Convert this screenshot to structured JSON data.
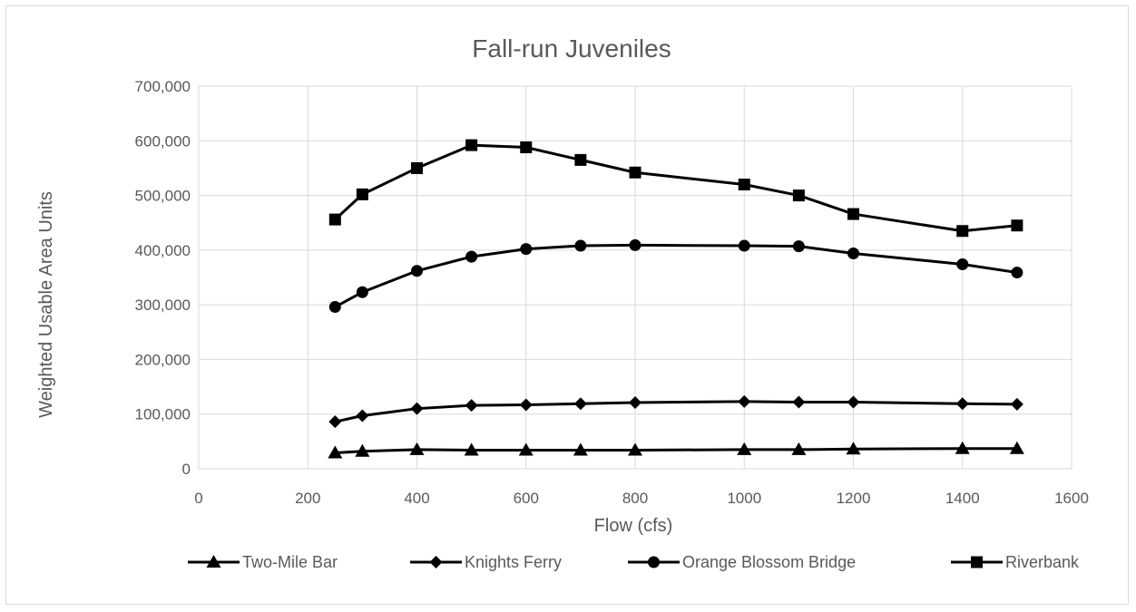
{
  "chart_data": {
    "type": "line",
    "title": "Fall-run Juveniles",
    "xlabel": "Flow (cfs)",
    "ylabel": "Weighted Usable Area Units",
    "xlim": [
      0,
      1600
    ],
    "ylim": [
      0,
      700000
    ],
    "x_ticks": [
      0,
      200,
      400,
      600,
      800,
      1000,
      1200,
      1400,
      1600
    ],
    "x_tick_labels": [
      "0",
      "200",
      "400",
      "600",
      "800",
      "1000",
      "1200",
      "1400",
      "1600"
    ],
    "y_ticks": [
      0,
      100000,
      200000,
      300000,
      400000,
      500000,
      600000,
      700000
    ],
    "y_tick_labels": [
      "0",
      "100,000",
      "200,000",
      "300,000",
      "400,000",
      "500,000",
      "600,000",
      "700,000"
    ],
    "grid": true,
    "legend_position": "bottom",
    "x": [
      250,
      300,
      400,
      500,
      600,
      700,
      800,
      1000,
      1100,
      1200,
      1400,
      1500
    ],
    "series": [
      {
        "name": "Two-Mile Bar",
        "marker": "triangle",
        "color": "#000000",
        "values": [
          29000,
          32000,
          35000,
          34000,
          34000,
          34000,
          34000,
          35000,
          35000,
          36000,
          37000,
          37000
        ]
      },
      {
        "name": "Knights Ferry",
        "marker": "diamond",
        "color": "#000000",
        "values": [
          86000,
          97000,
          110000,
          116000,
          117000,
          119000,
          121000,
          123000,
          122000,
          122000,
          119000,
          118000
        ]
      },
      {
        "name": "Orange Blossom Bridge",
        "marker": "circle",
        "color": "#000000",
        "values": [
          296000,
          323000,
          362000,
          388000,
          402000,
          408000,
          409000,
          408000,
          407000,
          394000,
          374000,
          359000
        ]
      },
      {
        "name": "Riverbank",
        "marker": "square",
        "color": "#000000",
        "values": [
          456000,
          502000,
          550000,
          592000,
          588000,
          565000,
          542000,
          520000,
          500000,
          466000,
          435000,
          445000
        ]
      }
    ]
  }
}
